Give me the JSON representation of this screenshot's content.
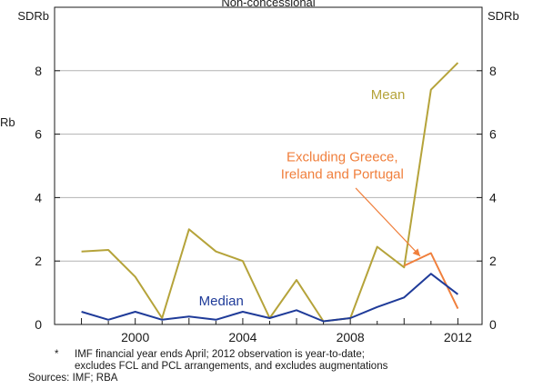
{
  "chart_data": {
    "type": "line",
    "title": "Non-concessional",
    "ylabel_left": "SDRb",
    "ylabel_right": "SDRb",
    "ylabel_left_outer": "Rb",
    "ylim": [
      0,
      10
    ],
    "yticks": [
      0,
      2,
      4,
      6,
      8
    ],
    "xlim": [
      1997,
      2012.9
    ],
    "xticks": [
      2000,
      2004,
      2008,
      2012
    ],
    "grid": true,
    "series": [
      {
        "name": "Mean",
        "color": "#b5a33a",
        "x": [
          1998,
          1999,
          2000,
          2001,
          2002,
          2003,
          2004,
          2005,
          2006,
          2007,
          2008,
          2009,
          2010,
          2011,
          2012
        ],
        "values": [
          2.3,
          2.35,
          1.5,
          0.2,
          3.0,
          2.3,
          2.0,
          0.2,
          1.4,
          0.1,
          0.2,
          2.45,
          1.8,
          7.4,
          8.25
        ]
      },
      {
        "name": "Excluding Greece, Ireland and Portugal",
        "color": "#f07f3c",
        "x": [
          2010,
          2011,
          2012
        ],
        "values": [
          1.85,
          2.25,
          0.5
        ]
      },
      {
        "name": "Median",
        "color": "#1f3b99",
        "x": [
          1998,
          1999,
          2000,
          2001,
          2002,
          2003,
          2004,
          2005,
          2006,
          2007,
          2008,
          2009,
          2010,
          2011,
          2012
        ],
        "values": [
          0.4,
          0.15,
          0.4,
          0.15,
          0.25,
          0.15,
          0.4,
          0.2,
          0.45,
          0.1,
          0.2,
          0.55,
          0.85,
          1.6,
          0.95
        ]
      }
    ],
    "annotations": {
      "mean": "Mean",
      "excluding_line1": "Excluding Greece,",
      "excluding_line2": "Ireland and Portugal",
      "median": "Median"
    }
  },
  "footnote": {
    "marker": "*",
    "line1": "IMF financial year ends April; 2012 observation is year-to-date;",
    "line2": "excludes FCL and PCL arrangements, and excludes augmentations"
  },
  "sources": "Sources: IMF; RBA"
}
